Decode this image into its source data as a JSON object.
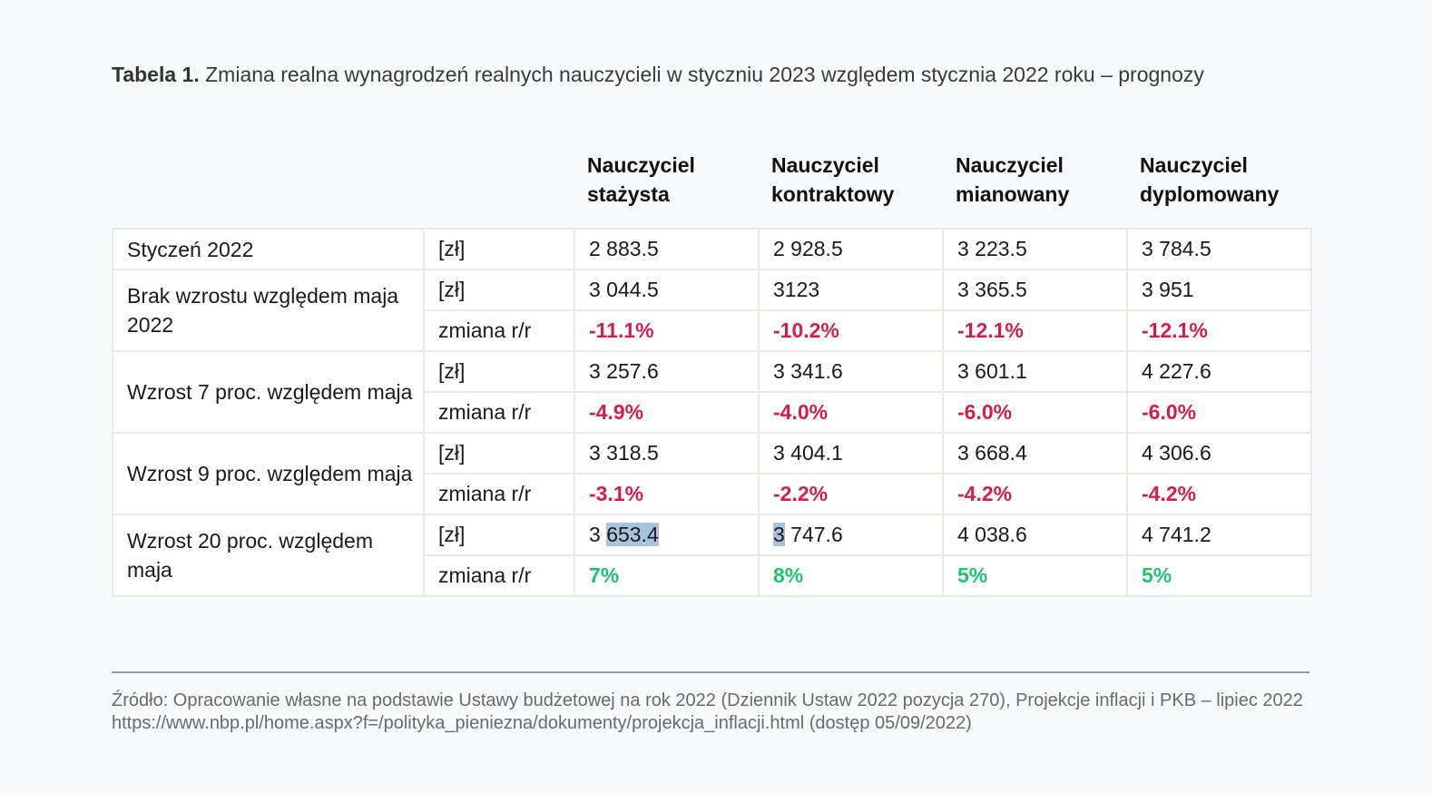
{
  "caption": {
    "lead": "Tabela 1.",
    "text": " Zmiana realna wynagrodzeń realnych nauczycieli w styczniu 2023 względem stycznia 2022 roku – prognozy"
  },
  "columns": [
    "Nauczyciel\nstażysta",
    "Nauczyciel\nkontraktowy",
    "Nauczyciel\nmianowany",
    "Nauczyciel\ndyplomowany"
  ],
  "groups": [
    {
      "label": "Styczeń 2022",
      "rows": [
        {
          "unit": "[zł]",
          "values": [
            "2 883.5",
            "2 928.5",
            "3 223.5",
            "3 784.5"
          ],
          "tone": "plain"
        }
      ]
    },
    {
      "label": "Brak wzrostu względem maja 2022",
      "rows": [
        {
          "unit": "[zł]",
          "values": [
            "3 044.5",
            "3123",
            "3 365.5",
            "3 951"
          ],
          "tone": "plain"
        },
        {
          "unit": "zmiana r/r",
          "values": [
            "-11.1%",
            "-10.2%",
            "-12.1%",
            "-12.1%"
          ],
          "tone": "neg"
        }
      ]
    },
    {
      "label": "Wzrost 7 proc. względem maja",
      "rows": [
        {
          "unit": "[zł]",
          "values": [
            "3 257.6",
            "3 341.6",
            "3 601.1",
            "4 227.6"
          ],
          "tone": "plain"
        },
        {
          "unit": "zmiana r/r",
          "values": [
            "-4.9%",
            "-4.0%",
            "-6.0%",
            "-6.0%"
          ],
          "tone": "neg"
        }
      ]
    },
    {
      "label": "Wzrost 9 proc. względem maja",
      "rows": [
        {
          "unit": "[zł]",
          "values": [
            "3 318.5",
            "3 404.1",
            "3 668.4",
            "4 306.6"
          ],
          "tone": "plain"
        },
        {
          "unit": "zmiana r/r",
          "values": [
            "-3.1%",
            "-2.2%",
            "-4.2%",
            "-4.2%"
          ],
          "tone": "neg"
        }
      ]
    },
    {
      "label": "Wzrost 20 proc. względem maja",
      "rows": [
        {
          "unit": "[zł]",
          "values": [
            "3 653.4",
            "3 747.6",
            "4 038.6",
            "4 741.2"
          ],
          "tone": "plain"
        },
        {
          "unit": "zmiana r/r",
          "values": [
            "7%",
            "8%",
            "5%",
            "5%"
          ],
          "tone": "pos"
        }
      ]
    }
  ],
  "selection": {
    "start_cell_prefix": "3 ",
    "start_cell_selected": "653.4",
    "end_cell_selected": "3",
    "end_cell_suffix": " 747.6"
  },
  "source": "Źródło: Opracowanie własne na podstawie Ustawy budżetowej na rok 2022 (Dziennik Ustaw 2022 pozycja 270), Projekcje inflacji i PKB – lipiec 2022 https://www.nbp.pl/home.aspx?f=/polityka_pieniezna/dokumenty/projekcja_inflacji.html (dostęp 05/09/2022)",
  "colors": {
    "negative": "#d21f4a",
    "positive": "#1fc36b",
    "selection": "#a8c4dc",
    "background": "#f8f9fb"
  }
}
